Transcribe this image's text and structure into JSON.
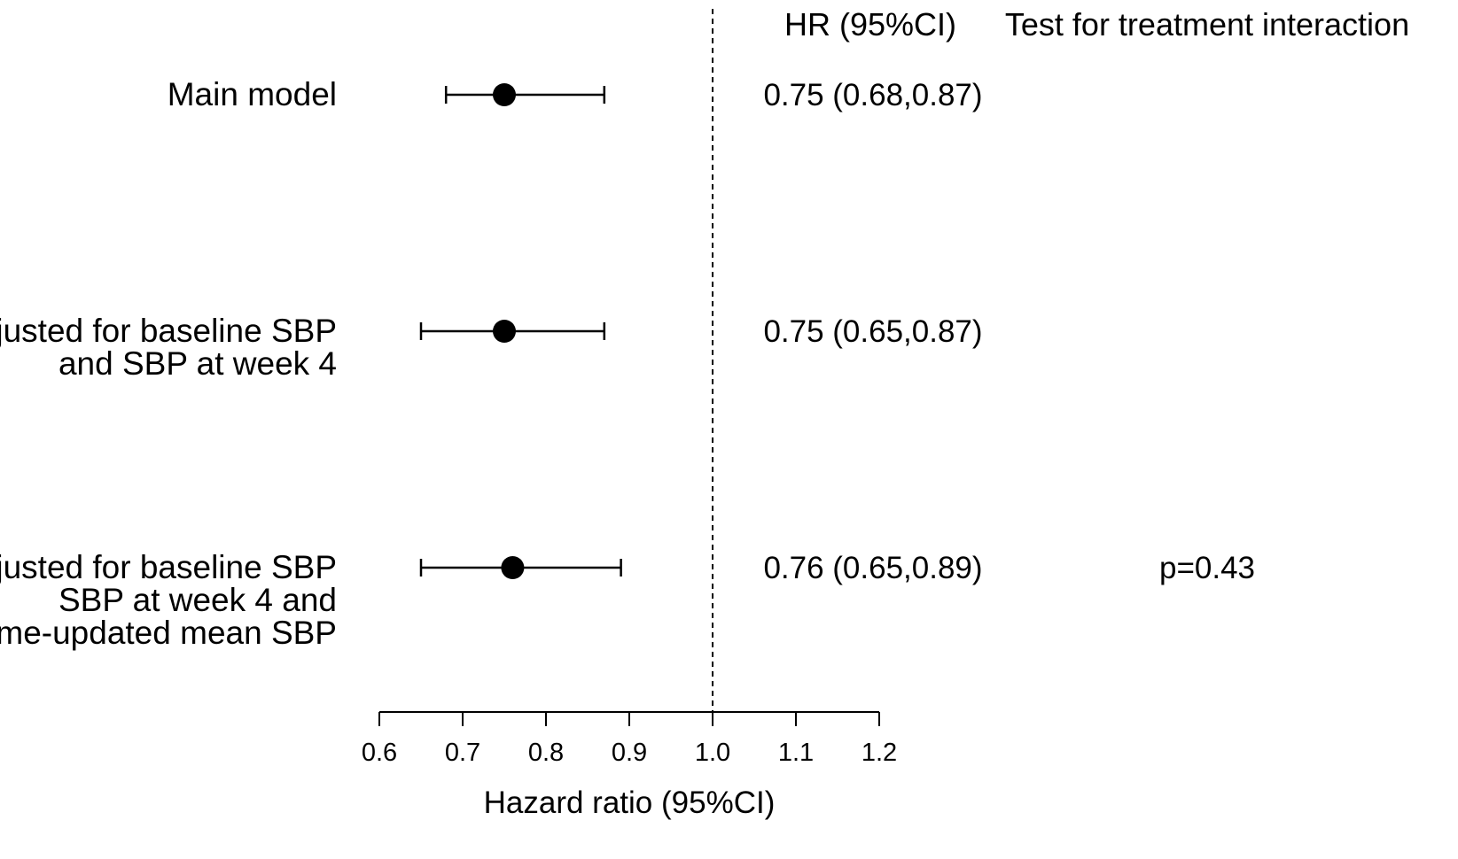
{
  "chart_data": {
    "type": "forest",
    "xlabel": "Hazard ratio (95%CI)",
    "xlim": [
      0.6,
      1.2
    ],
    "xticks": [
      "0.6",
      "0.7",
      "0.8",
      "0.9",
      "1.0",
      "1.1",
      "1.2"
    ],
    "reference_line": 1.0,
    "columns": {
      "hr": "HR (95%CI)",
      "interaction": "Test for treatment interaction"
    },
    "rows": [
      {
        "label_lines": [
          "Main model"
        ],
        "hr": 0.75,
        "lower": 0.68,
        "upper": 0.87,
        "hr_text": "0.75 (0.68,0.87)",
        "interaction": ""
      },
      {
        "label_lines": [
          "Adjusted for baseline SBP",
          "and SBP at week 4"
        ],
        "hr": 0.75,
        "lower": 0.65,
        "upper": 0.87,
        "hr_text": "0.75 (0.65,0.87)",
        "interaction": ""
      },
      {
        "label_lines": [
          "Adjusted for baseline SBP",
          "SBP at week 4 and",
          "time-updated mean SBP"
        ],
        "hr": 0.76,
        "lower": 0.65,
        "upper": 0.89,
        "hr_text": "0.76 (0.65,0.89)",
        "interaction": "p=0.43"
      }
    ]
  }
}
